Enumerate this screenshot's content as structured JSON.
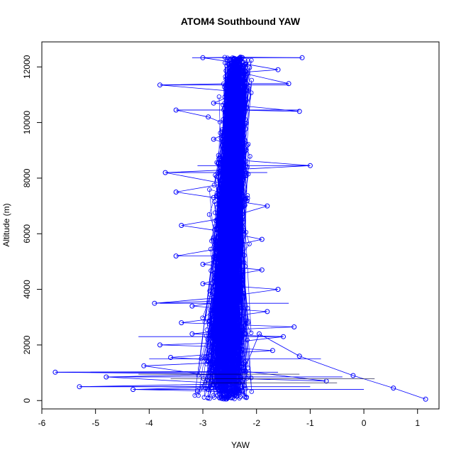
{
  "chart_data": {
    "type": "line",
    "title": "ATOM4 Southbound YAW",
    "xlabel": "YAW",
    "ylabel": "Altitude (m)",
    "xlim": [
      -6,
      1.4
    ],
    "ylim": [
      -300,
      12900
    ],
    "xticks": [
      -6,
      -5,
      -4,
      -3,
      -2,
      -1,
      0,
      1
    ],
    "yticks": [
      0,
      2000,
      4000,
      6000,
      8000,
      10000,
      12000
    ],
    "series_color": "#0000ff",
    "marker": "open-circle",
    "series": [
      {
        "values_description_hidden": true,
        "points": [
          [
            1.15,
            50
          ],
          [
            0.55,
            450
          ],
          [
            -0.2,
            900
          ],
          [
            -1.2,
            1600
          ],
          [
            -1.95,
            2400
          ],
          [
            -2.4,
            300
          ],
          [
            -3.1,
            350
          ],
          [
            -4.3,
            400
          ],
          [
            -2.6,
            500
          ],
          [
            -5.3,
            500
          ],
          [
            -2.5,
            600
          ],
          [
            -4.8,
            850
          ],
          [
            -2.4,
            950
          ],
          [
            -5.75,
            1020
          ],
          [
            -2.2,
            1050
          ],
          [
            -0.7,
            700
          ],
          [
            -2.5,
            800
          ],
          [
            -4.1,
            1250
          ],
          [
            -2.3,
            1400
          ],
          [
            -3.6,
            1550
          ],
          [
            -2.6,
            1700
          ],
          [
            -1.7,
            1800
          ],
          [
            -2.9,
            1950
          ],
          [
            -3.8,
            2000
          ],
          [
            -2.4,
            2100
          ],
          [
            -1.5,
            2300
          ],
          [
            -3.2,
            2400
          ],
          [
            -2.5,
            2550
          ],
          [
            -1.3,
            2650
          ],
          [
            -3.4,
            2800
          ],
          [
            -2.6,
            3000
          ],
          [
            -1.8,
            3200
          ],
          [
            -3.2,
            3400
          ],
          [
            -2.5,
            3600
          ],
          [
            -3.9,
            3500
          ],
          [
            -2.7,
            3700
          ],
          [
            -1.6,
            4000
          ],
          [
            -3.0,
            4200
          ],
          [
            -2.5,
            4500
          ],
          [
            -1.9,
            4700
          ],
          [
            -3.0,
            4900
          ],
          [
            -2.5,
            5200
          ],
          [
            -3.5,
            5200
          ],
          [
            -2.6,
            5500
          ],
          [
            -1.9,
            5800
          ],
          [
            -2.7,
            6100
          ],
          [
            -3.4,
            6300
          ],
          [
            -2.5,
            6600
          ],
          [
            -1.8,
            7000
          ],
          [
            -2.8,
            7300
          ],
          [
            -3.5,
            7500
          ],
          [
            -2.6,
            7800
          ],
          [
            -3.7,
            8200
          ],
          [
            -2.5,
            8300
          ],
          [
            -1.0,
            8450
          ],
          [
            -2.7,
            8700
          ],
          [
            -2.2,
            9000
          ],
          [
            -2.8,
            9400
          ],
          [
            -2.4,
            9800
          ],
          [
            -2.9,
            10200
          ],
          [
            -3.5,
            10450
          ],
          [
            -2.4,
            10450
          ],
          [
            -1.2,
            10400
          ],
          [
            -2.8,
            10700
          ],
          [
            -2.3,
            11100
          ],
          [
            -3.8,
            11350
          ],
          [
            -2.5,
            11400
          ],
          [
            -1.4,
            11400
          ],
          [
            -2.3,
            11800
          ],
          [
            -1.6,
            11900
          ],
          [
            -2.2,
            12100
          ],
          [
            -3.0,
            12330
          ],
          [
            -2.3,
            12350
          ],
          [
            -1.15,
            12330
          ]
        ]
      }
    ]
  }
}
